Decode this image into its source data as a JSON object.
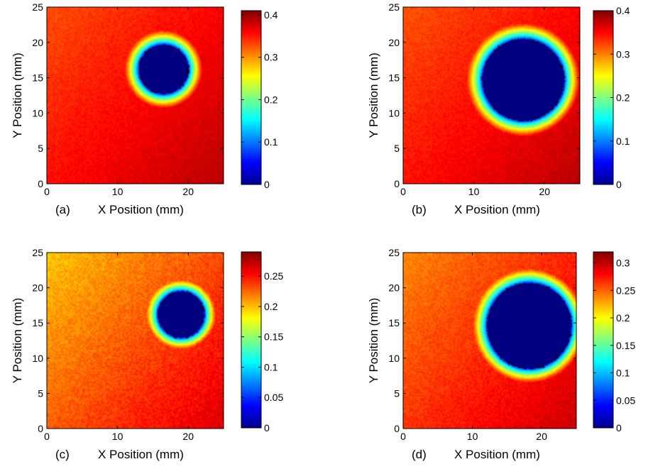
{
  "figure": {
    "colormap": "jet",
    "background": "#ffffff"
  },
  "chart_data": [
    {
      "type": "heatmap",
      "panel_label": "(a)",
      "xlabel": "X Position (mm)",
      "ylabel": "Y Position (mm)",
      "xlim": [
        0,
        25
      ],
      "ylim": [
        0,
        25
      ],
      "xticks": [
        "0",
        "10",
        "20"
      ],
      "yticks": [
        "0",
        "5",
        "10",
        "15",
        "20",
        "25"
      ],
      "colorbar": {
        "min": 0,
        "max": 0.41,
        "ticks": [
          "0",
          "0.1",
          "0.2",
          "0.3",
          "0.4"
        ],
        "tick_values": [
          0,
          0.1,
          0.2,
          0.3,
          0.4
        ]
      },
      "field": {
        "base": 0.33,
        "max": 0.41,
        "gradient": "left-to-bottom-right",
        "background_value": 0.33
      },
      "hole": {
        "center": [
          16.5,
          16.2
        ],
        "radius": 3.5,
        "value": 0,
        "ring_width": 2.0
      }
    },
    {
      "type": "heatmap",
      "panel_label": "(b)",
      "xlabel": "X Position (mm)",
      "ylabel": "Y Position (mm)",
      "xlim": [
        0,
        25
      ],
      "ylim": [
        0,
        25
      ],
      "xticks": [
        "0",
        "10",
        "20"
      ],
      "yticks": [
        "0",
        "5",
        "10",
        "15",
        "20",
        "25"
      ],
      "colorbar": {
        "min": 0,
        "max": 0.4,
        "ticks": [
          "0",
          "0.1",
          "0.2",
          "0.3",
          "0.4"
        ],
        "tick_values": [
          0,
          0.1,
          0.2,
          0.3,
          0.4
        ]
      },
      "field": {
        "base": 0.32,
        "max": 0.4,
        "gradient": "left-to-bottom-right",
        "background_value": 0.32
      },
      "hole": {
        "center": [
          17.0,
          14.7
        ],
        "radius": 5.8,
        "value": 0,
        "ring_width": 2.2
      }
    },
    {
      "type": "heatmap",
      "panel_label": "(c)",
      "xlabel": "X Position (mm)",
      "ylabel": "Y Position (mm)",
      "xlim": [
        0,
        25
      ],
      "ylim": [
        0,
        25
      ],
      "xticks": [
        "0",
        "10",
        "20"
      ],
      "yticks": [
        "0",
        "5",
        "10",
        "15",
        "20",
        "25"
      ],
      "colorbar": {
        "min": 0,
        "max": 0.29,
        "ticks": [
          "0",
          "0.05",
          "0.1",
          "0.15",
          "0.2",
          "0.25"
        ],
        "tick_values": [
          0,
          0.05,
          0.1,
          0.15,
          0.2,
          0.25
        ]
      },
      "field": {
        "base": 0.2,
        "max": 0.29,
        "gradient": "left-to-bottom-right",
        "background_value": 0.2
      },
      "hole": {
        "center": [
          19.0,
          16.2
        ],
        "radius": 3.3,
        "value": 0,
        "ring_width": 1.6
      }
    },
    {
      "type": "heatmap",
      "panel_label": "(d)",
      "xlabel": "X Position (mm)",
      "ylabel": "Y Position (mm)",
      "xlim": [
        0,
        25
      ],
      "ylim": [
        0,
        25
      ],
      "xticks": [
        "0",
        "10",
        "20"
      ],
      "yticks": [
        "0",
        "5",
        "10",
        "15",
        "20",
        "25"
      ],
      "colorbar": {
        "min": 0,
        "max": 0.32,
        "ticks": [
          "0",
          "0.05",
          "0.1",
          "0.15",
          "0.2",
          "0.25",
          "0.3"
        ],
        "tick_values": [
          0,
          0.05,
          0.1,
          0.15,
          0.2,
          0.25,
          0.3
        ]
      },
      "field": {
        "base": 0.24,
        "max": 0.32,
        "gradient": "left-to-bottom-right",
        "background_value": 0.24
      },
      "hole": {
        "center": [
          18.2,
          14.6
        ],
        "radius": 6.1,
        "value": 0,
        "ring_width": 2.0
      }
    }
  ]
}
